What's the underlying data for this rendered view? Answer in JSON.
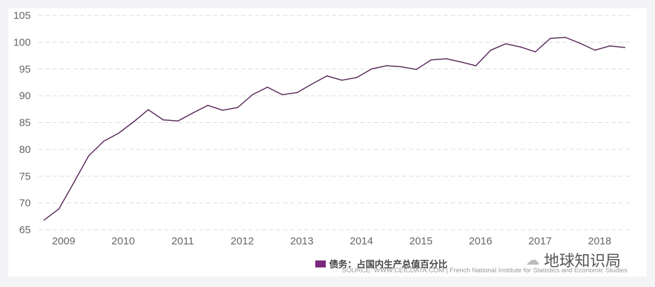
{
  "chart_data": {
    "type": "line",
    "title": "",
    "xlabel": "",
    "ylabel": "",
    "ylim": [
      65,
      105
    ],
    "yticks": [
      65,
      70,
      75,
      80,
      85,
      90,
      95,
      100,
      105
    ],
    "xtick_labels": [
      "2009",
      "2010",
      "2011",
      "2012",
      "2013",
      "2014",
      "2015",
      "2016",
      "2017",
      "2018"
    ],
    "grid": "horizontal dashed",
    "legend_position": "bottom-center",
    "series": [
      {
        "name": "债务：占国内生产总值百分比",
        "color": "#5a2d5c",
        "values": [
          66.8,
          68.9,
          73.8,
          78.8,
          81.5,
          83.0,
          85.1,
          87.4,
          85.5,
          85.3,
          86.8,
          88.2,
          87.3,
          87.8,
          90.2,
          91.6,
          90.2,
          90.6,
          92.2,
          93.7,
          92.9,
          93.4,
          95.0,
          95.6,
          95.4,
          94.9,
          96.7,
          96.9,
          96.3,
          95.6,
          98.5,
          99.7,
          99.1,
          98.2,
          100.7,
          100.9,
          99.8,
          98.5,
          99.3,
          99.0
        ]
      }
    ]
  },
  "legend": {
    "label": "债务：占国内生产总值百分比",
    "color": "#7b2a7f"
  },
  "source": "SOURCE: WWW.CEICDATA.COM | French National Institute for Statistics and Economic Studies",
  "watermark": "地球知识局"
}
